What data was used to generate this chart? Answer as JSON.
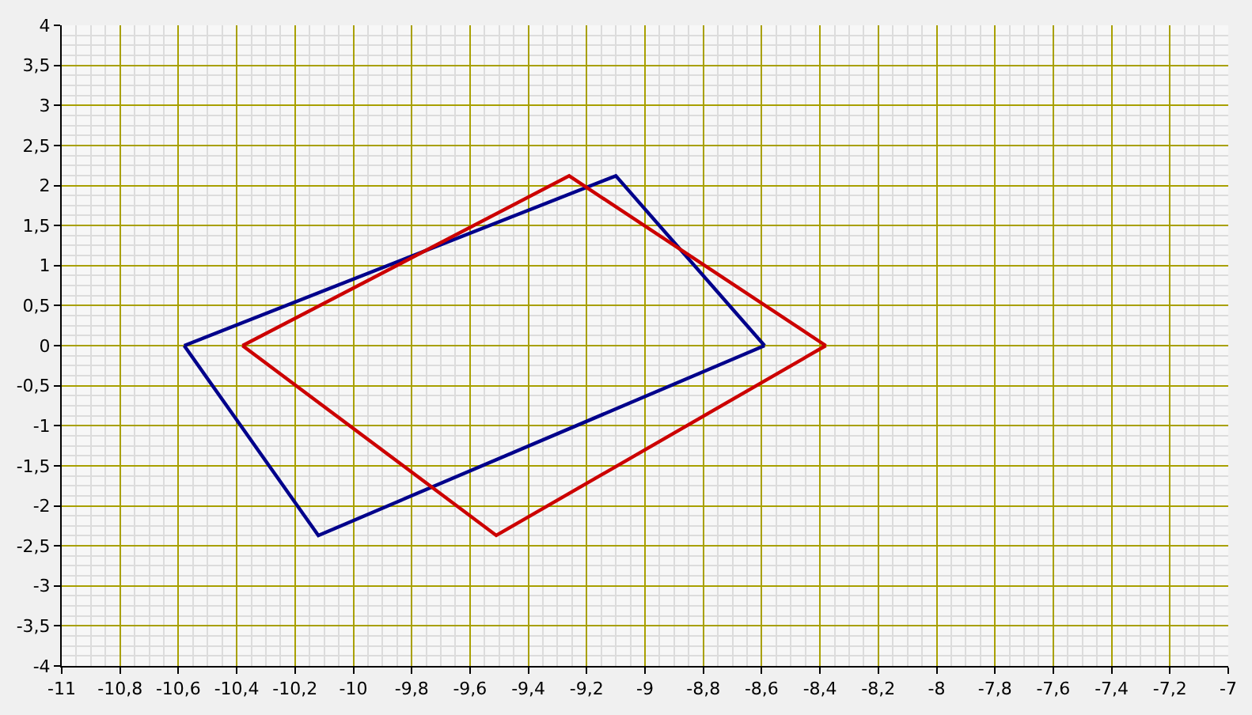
{
  "chart_data": {
    "type": "line",
    "xlim": [
      -11,
      -7
    ],
    "ylim": [
      -4,
      4
    ],
    "xticks": [
      -11,
      {
        "value": -10.8,
        "label": "-10,8"
      },
      {
        "value": -10.6,
        "label": "-10,6"
      },
      {
        "value": -10.4,
        "label": "-10,4"
      },
      {
        "value": -10.2,
        "label": "-10,2"
      },
      -10,
      {
        "value": -9.8,
        "label": "-9,8"
      },
      {
        "value": -9.6,
        "label": "-9,6"
      },
      {
        "value": -9.4,
        "label": "-9,4"
      },
      {
        "value": -9.2,
        "label": "-9,2"
      },
      -9,
      {
        "value": -8.8,
        "label": "-8,8"
      },
      {
        "value": -8.6,
        "label": "-8,6"
      },
      {
        "value": -8.4,
        "label": "-8,4"
      },
      {
        "value": -8.2,
        "label": "-8,2"
      },
      -8,
      {
        "value": -7.8,
        "label": "-7,8"
      },
      {
        "value": -7.6,
        "label": "-7,6"
      },
      {
        "value": -7.4,
        "label": "-7,4"
      },
      {
        "value": -7.2,
        "label": "-7,2"
      },
      -7
    ],
    "yticks": [
      -4,
      {
        "value": -3.5,
        "label": "-3,5"
      },
      -3,
      {
        "value": -2.5,
        "label": "-2,5"
      },
      -2,
      {
        "value": -1.5,
        "label": "-1,5"
      },
      -1,
      {
        "value": -0.5,
        "label": "-0,5"
      },
      0,
      {
        "value": 0.5,
        "label": "0,5"
      },
      1,
      {
        "value": 1.5,
        "label": "1,5"
      },
      2,
      {
        "value": 2.5,
        "label": "2,5"
      },
      3,
      {
        "value": 3.5,
        "label": "3,5"
      },
      4
    ],
    "grid": true,
    "marker": "none",
    "line_style": "solid",
    "series": [
      {
        "color": "#00008b",
        "x": [
          -10.58,
          -9.1,
          -8.59
        ],
        "values": [
          0,
          2.12,
          0
        ]
      },
      {
        "color": "#00008b",
        "x": [
          -10.58,
          -10.12,
          -8.59
        ],
        "values": [
          0,
          -2.37,
          0
        ]
      },
      {
        "color": "#cc0000",
        "x": [
          -10.38,
          -9.26,
          -8.38
        ],
        "values": [
          0,
          2.12,
          0
        ]
      },
      {
        "color": "#cc0000",
        "x": [
          -10.38,
          -9.51,
          -8.38
        ],
        "values": [
          0,
          -2.37,
          0
        ]
      }
    ]
  }
}
